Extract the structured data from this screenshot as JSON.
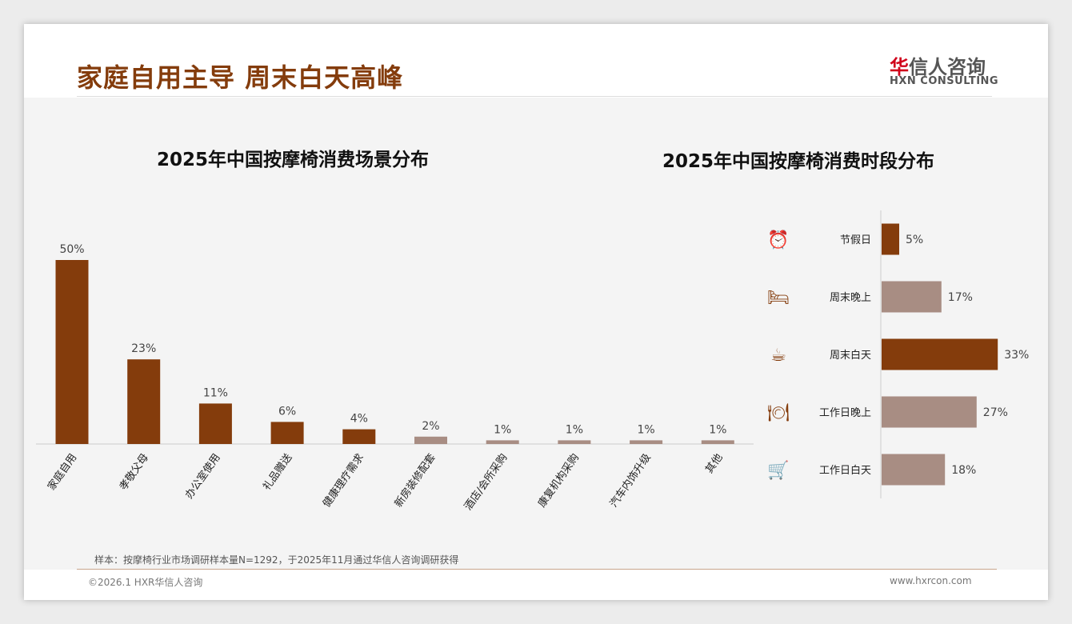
{
  "header": {
    "title": "家庭自用主导 周末白天高峰",
    "logo_cn_red": "华",
    "logo_cn": "信人咨询",
    "logo_en": "HXN CONSULTING"
  },
  "footer": {
    "note": "样本：按摩椅行业市场调研样本量N=1292，于2025年11月通过华信人咨询调研获得",
    "copyright": "©2026.1 HXR华信人咨询",
    "url": "www.hxrcon.com"
  },
  "colors": {
    "dark": "#843C0C",
    "light": "#A88D83"
  },
  "chart_data": [
    {
      "type": "bar",
      "title": "2025年中国按摩椅消费场景分布",
      "categories": [
        "家庭自用",
        "孝敬父母",
        "办公室使用",
        "礼品赠送",
        "健康理疗需求",
        "新房装修配套",
        "酒店/会所采购",
        "康复机构采购",
        "汽车内饰升级",
        "其他"
      ],
      "values": [
        50,
        23,
        11,
        6,
        4,
        2,
        1,
        1,
        1,
        1
      ],
      "labels": [
        "50%",
        "23%",
        "11%",
        "6%",
        "4%",
        "2%",
        "1%",
        "1%",
        "1%",
        "1%"
      ],
      "highlight": [
        true,
        true,
        true,
        true,
        true,
        false,
        false,
        false,
        false,
        false
      ],
      "unit": "%"
    },
    {
      "type": "bar",
      "orientation": "horizontal",
      "title": "2025年中国按摩椅消费时段分布",
      "categories": [
        "节假日",
        "周末晚上",
        "周末白天",
        "工作日晚上",
        "工作日白天"
      ],
      "icons": [
        "alarm-clock-icon",
        "bed-icon",
        "coffee-mug-icon",
        "plate-cutlery-icon",
        "shopping-cart-icon"
      ],
      "values": [
        5,
        17,
        33,
        27,
        18
      ],
      "labels": [
        "5%",
        "17%",
        "33%",
        "27%",
        "18%"
      ],
      "highlight": [
        true,
        false,
        true,
        false,
        false
      ],
      "unit": "%"
    }
  ]
}
